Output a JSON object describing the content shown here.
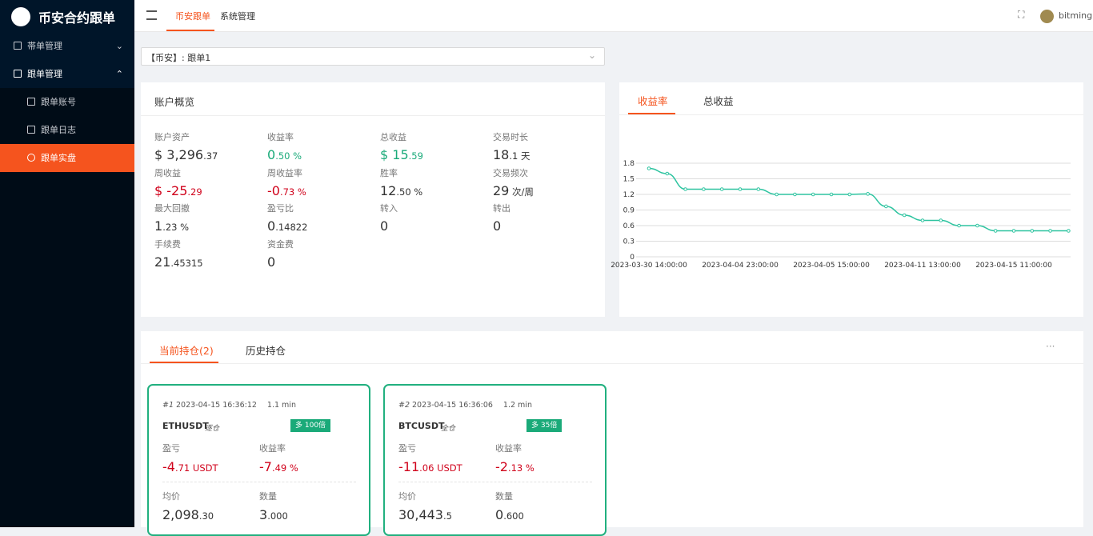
{
  "sidebar": {
    "logo": "币安合约跟单",
    "menu": [
      {
        "label": "帯单管理"
      },
      {
        "label": "跟单管理",
        "children": [
          "跟单账号",
          "跟单日志",
          "跟单实盘"
        ]
      }
    ]
  },
  "header": {
    "tabs": [
      "币安跟单",
      "系统管理"
    ],
    "user": "bitming"
  },
  "selector": "【币安】: 跟单1",
  "overview": {
    "title": "账户概览",
    "stats": [
      {
        "label": "账户资产",
        "main": "$ 3,296",
        "small": ".37"
      },
      {
        "label": "收益率",
        "main": "0",
        "small": ".50 %",
        "color": "#1aaa79"
      },
      {
        "label": "总收益",
        "main": "$ 15",
        "small": ".59",
        "color": "#1aaa79"
      },
      {
        "label": "交易时长",
        "main": "18",
        "small": ".1 天"
      },
      {
        "label": "周收益",
        "main": "$ -25",
        "small": ".29",
        "color": "#d0021b"
      },
      {
        "label": "周收益率",
        "main": "-0",
        "small": ".73 %",
        "color": "#d0021b"
      },
      {
        "label": "胜率",
        "main": "12",
        "small": ".50 %"
      },
      {
        "label": "交易频次",
        "main": "29",
        "small": " 次/周"
      },
      {
        "label": "最大回撤",
        "main": "1",
        "small": ".23 %"
      },
      {
        "label": "盈亏比",
        "main": "0",
        "small": ".14822"
      },
      {
        "label": "转入",
        "main": "0"
      },
      {
        "label": "转出",
        "main": "0"
      },
      {
        "label": "手续费",
        "main": "21",
        "small": ".45315"
      },
      {
        "label": "资金费",
        "main": "0"
      }
    ]
  },
  "chart_tabs": [
    "收益率",
    "总收益"
  ],
  "chart_data": {
    "type": "line",
    "color": "#2ec4a0",
    "categories": [
      "2023-03-30 14:00:00",
      null,
      null,
      null,
      null,
      "2023-04-04 23:00:00",
      null,
      null,
      null,
      null,
      "2023-04-05 15:00:00",
      null,
      null,
      null,
      null,
      "2023-04-11 13:00:00",
      null,
      null,
      null,
      null,
      "2023-04-15 11:00:00",
      null,
      null,
      null
    ],
    "values": [
      1.7,
      1.6,
      1.3,
      1.3,
      1.3,
      1.3,
      1.3,
      1.2,
      1.2,
      1.2,
      1.2,
      1.2,
      1.21,
      0.97,
      0.8,
      0.7,
      0.7,
      0.6,
      0.6,
      0.5,
      0.5,
      0.5,
      0.5,
      0.5
    ],
    "ylim": [
      0,
      1.8
    ],
    "yticks": [
      0,
      0.3,
      0.6,
      0.9,
      1.2,
      1.5,
      1.8
    ],
    "grid": true
  },
  "positions": {
    "tabs": [
      "当前持仓(2)",
      "历史持仓"
    ],
    "more": "···",
    "cards": [
      {
        "index": "#1",
        "time": "2023-04-15 16:36:12",
        "duration": "1.1 min",
        "symbol": "ETHUSDT",
        "margin": "逐仓",
        "badge": "多 100倍",
        "fields": [
          {
            "label": "盈亏",
            "main": "-4",
            "small": ".71 USDT",
            "color": "#d0021b"
          },
          {
            "label": "收益率",
            "main": "-7",
            "small": ".49 %",
            "color": "#d0021b"
          },
          {
            "label": "均价",
            "main": "2,098",
            "small": ".30"
          },
          {
            "label": "数量",
            "main": "3",
            "small": ".000"
          }
        ]
      },
      {
        "index": "#2",
        "time": "2023-04-15 16:36:06",
        "duration": "1.2 min",
        "symbol": "BTCUSDT",
        "margin": "全仓",
        "badge": "多 35倍",
        "fields": [
          {
            "label": "盈亏",
            "main": "-11",
            "small": ".06 USDT",
            "color": "#d0021b"
          },
          {
            "label": "收益率",
            "main": "-2",
            "small": ".13 %",
            "color": "#d0021b"
          },
          {
            "label": "均价",
            "main": "30,443",
            "small": ".5"
          },
          {
            "label": "数量",
            "main": "0",
            "small": ".600"
          }
        ]
      }
    ]
  }
}
